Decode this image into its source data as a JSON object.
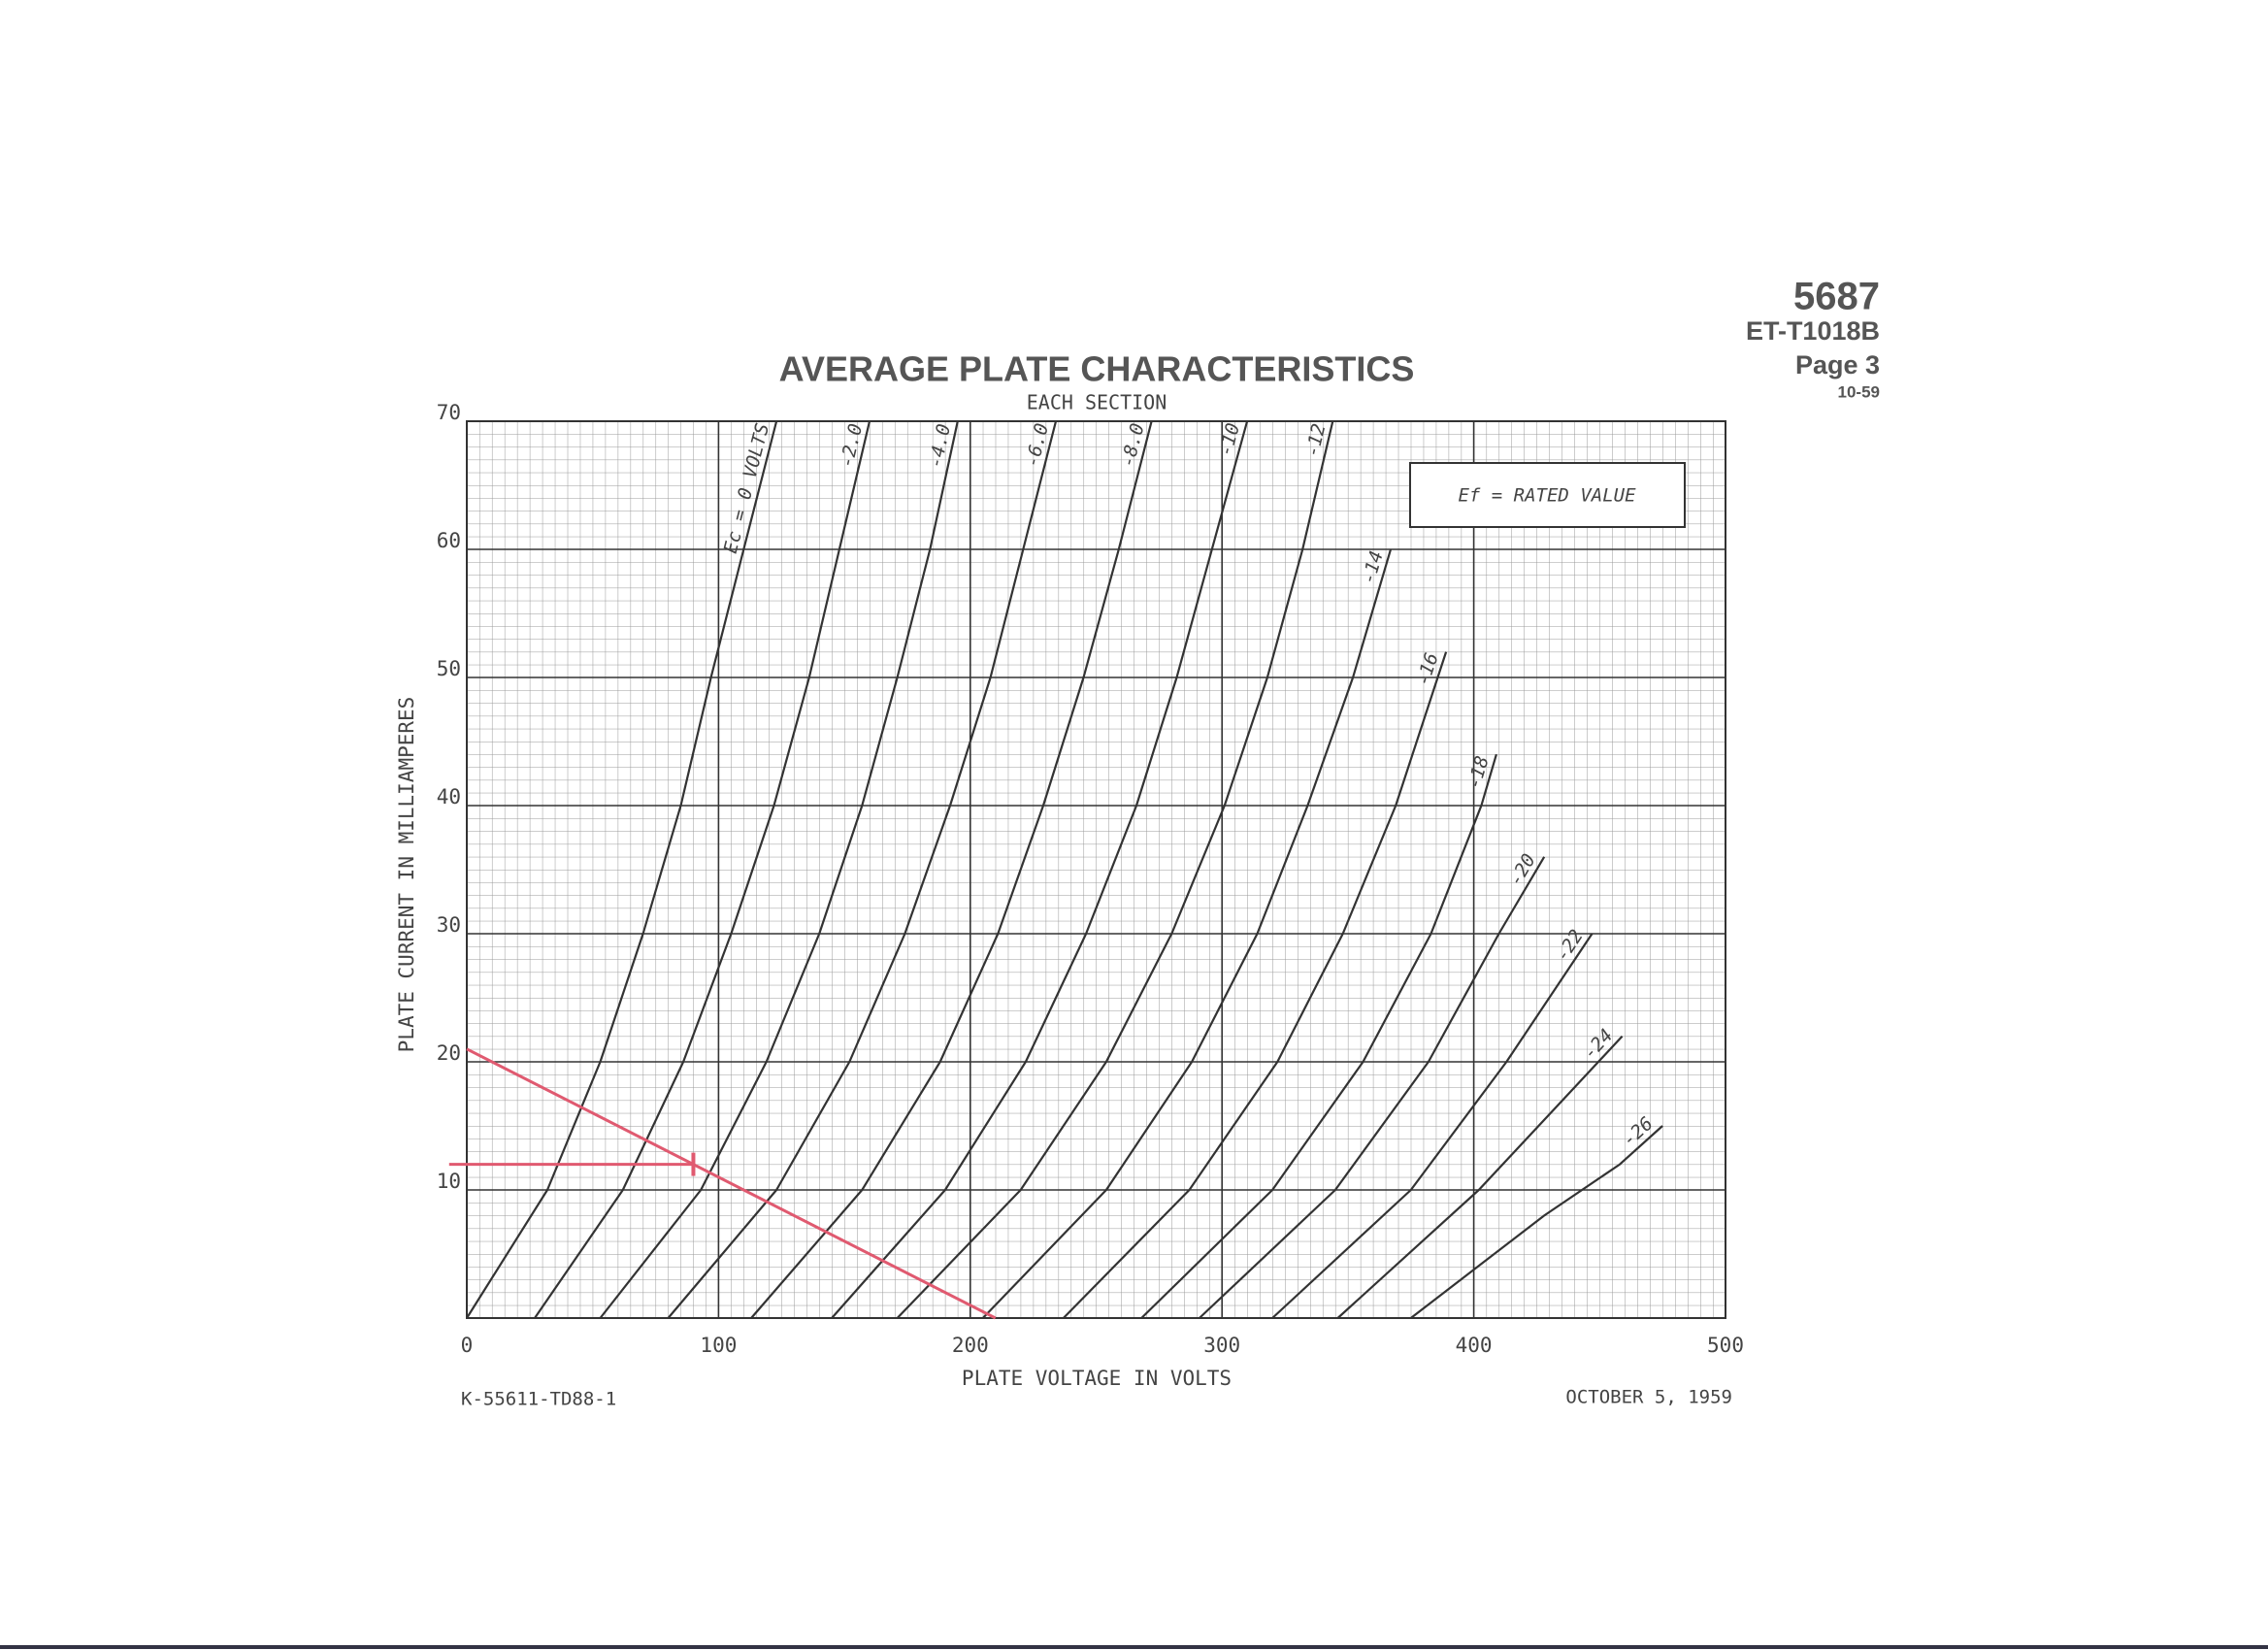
{
  "header": {
    "tube": "5687",
    "doc": "ET-T1018B",
    "page": "Page 3",
    "rev": "10-59"
  },
  "chart_data": {
    "type": "line",
    "title": "AVERAGE PLATE CHARACTERISTICS",
    "subtitle": "EACH SECTION",
    "x_label": "PLATE VOLTAGE IN VOLTS",
    "y_label": "PLATE CURRENT IN MILLIAMPERES",
    "annotation": "Ef = RATED VALUE",
    "xlim": [
      0,
      500
    ],
    "xticks": [
      0,
      100,
      200,
      300,
      400,
      500
    ],
    "ylim": [
      0,
      70
    ],
    "yticks": [
      10,
      20,
      30,
      40,
      50,
      60,
      70
    ],
    "grid": true,
    "series": [
      {
        "name": "Ec = 0 VOLTS",
        "color": "#333333",
        "x": [
          0,
          32,
          53,
          70,
          85,
          97,
          110,
          123
        ],
        "values": [
          0,
          10,
          20,
          30,
          40,
          50,
          60,
          70
        ]
      },
      {
        "name": "-2.0",
        "color": "#333333",
        "x": [
          27,
          62,
          86,
          105,
          122,
          136,
          148,
          160
        ],
        "values": [
          0,
          10,
          20,
          30,
          40,
          50,
          60,
          70
        ]
      },
      {
        "name": "-4.0",
        "color": "#333333",
        "x": [
          53,
          93,
          119,
          140,
          157,
          171,
          184,
          195
        ],
        "values": [
          0,
          10,
          20,
          30,
          40,
          50,
          60,
          70
        ]
      },
      {
        "name": "-6.0",
        "color": "#333333",
        "x": [
          80,
          123,
          152,
          174,
          192,
          208,
          221,
          234
        ],
        "values": [
          0,
          10,
          20,
          30,
          40,
          50,
          60,
          70
        ]
      },
      {
        "name": "-8.0",
        "color": "#333333",
        "x": [
          113,
          157,
          188,
          211,
          229,
          245,
          259,
          272
        ],
        "values": [
          0,
          10,
          20,
          30,
          40,
          50,
          60,
          70
        ]
      },
      {
        "name": "-10",
        "color": "#333333",
        "x": [
          145,
          190,
          222,
          246,
          266,
          282,
          296,
          310
        ],
        "values": [
          0,
          10,
          20,
          30,
          40,
          50,
          60,
          70
        ]
      },
      {
        "name": "-12",
        "color": "#333333",
        "x": [
          171,
          220,
          254,
          280,
          301,
          318,
          332,
          344
        ],
        "values": [
          0,
          10,
          20,
          30,
          40,
          50,
          60,
          70
        ]
      },
      {
        "name": "-14",
        "color": "#333333",
        "x": [
          205,
          254,
          288,
          314,
          334,
          352,
          367
        ],
        "values": [
          0,
          10,
          20,
          30,
          40,
          50,
          60
        ]
      },
      {
        "name": "-16",
        "color": "#333333",
        "x": [
          237,
          287,
          322,
          348,
          369,
          389
        ],
        "values": [
          0,
          10,
          20,
          30,
          40,
          52
        ]
      },
      {
        "name": "-18",
        "color": "#333333",
        "x": [
          268,
          320,
          356,
          383,
          403,
          409
        ],
        "values": [
          0,
          10,
          20,
          30,
          40,
          44
        ]
      },
      {
        "name": "-20",
        "color": "#333333",
        "x": [
          291,
          345,
          382,
          410,
          428
        ],
        "values": [
          0,
          10,
          20,
          30,
          36
        ]
      },
      {
        "name": "-22",
        "color": "#333333",
        "x": [
          320,
          375,
          413,
          447
        ],
        "values": [
          0,
          10,
          20,
          30
        ]
      },
      {
        "name": "-24",
        "color": "#333333",
        "x": [
          346,
          402,
          440,
          459
        ],
        "values": [
          0,
          10,
          18,
          22
        ]
      },
      {
        "name": "-26",
        "color": "#333333",
        "x": [
          375,
          428,
          458,
          475
        ],
        "values": [
          0,
          8,
          12,
          15
        ]
      },
      {
        "color": "#e05a70",
        "x": [
          0,
          210
        ],
        "values": [
          21,
          0
        ]
      },
      {
        "color": "#e05a70",
        "x": [
          -7,
          90
        ],
        "values": [
          12,
          12
        ]
      }
    ]
  },
  "footer": {
    "code": "K-55611-TD88-1",
    "date": "OCTOBER 5, 1959"
  }
}
